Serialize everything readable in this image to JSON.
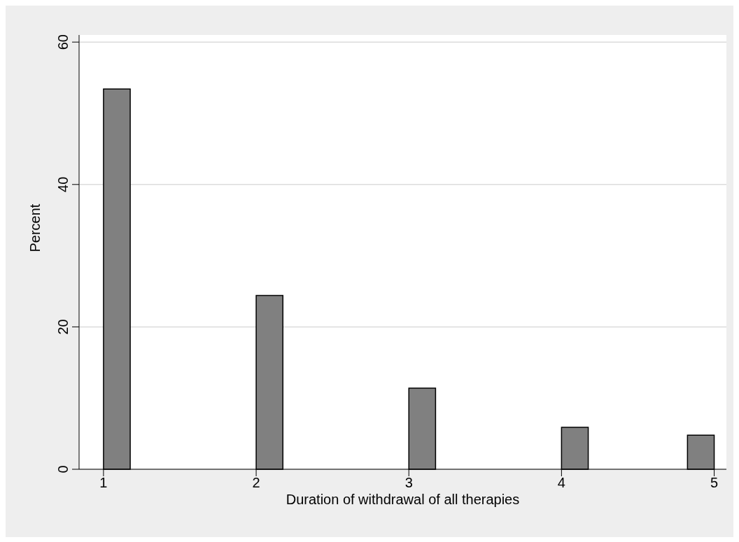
{
  "chart_data": {
    "type": "histogram",
    "xlabel": "Duration of withdrawal of all therapies",
    "ylabel": "Percent",
    "bins": [
      1,
      1.175,
      2,
      2.175,
      3,
      3.175,
      4,
      4.175,
      4.825,
      5
    ],
    "values": [
      53.4,
      0,
      24.4,
      0,
      11.4,
      0,
      5.9,
      0,
      4.8
    ],
    "color": "#808080",
    "xlim": [
      0.84,
      5.08
    ],
    "xticks": [
      1,
      2,
      3,
      4,
      5
    ],
    "ylim": [
      0,
      61
    ],
    "yticks": [
      0,
      20,
      40,
      60
    ],
    "grid": "y"
  }
}
